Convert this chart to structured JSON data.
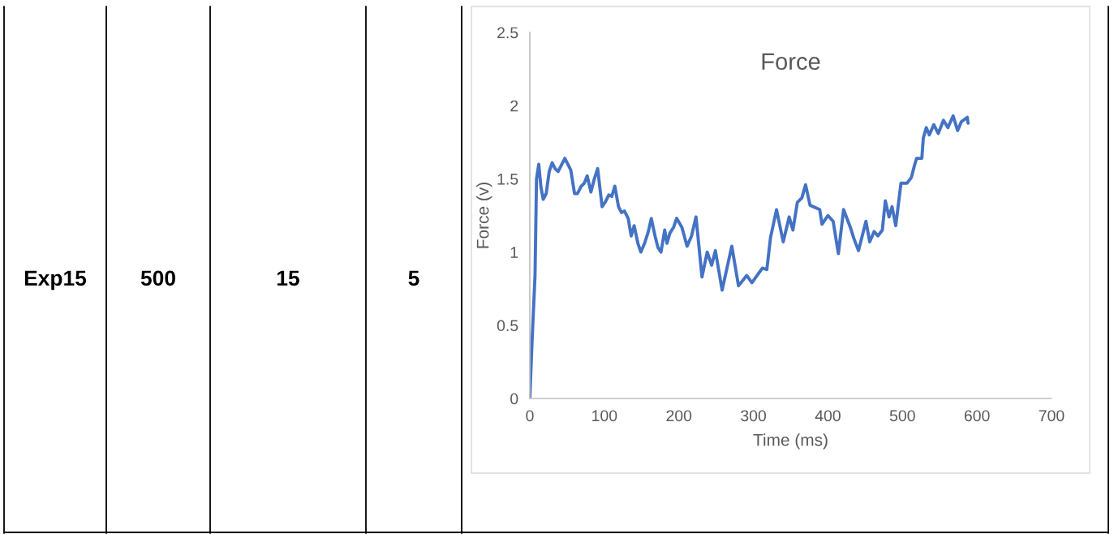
{
  "chart_data": [
    {
      "type": "other",
      "annotations": [
        "Exp15",
        "500",
        "15",
        "5"
      ]
    },
    {
      "type": "line",
      "title": "Force",
      "xlabel": "Time (ms)",
      "ylabel": "Force (v)",
      "xlim": [
        0,
        700
      ],
      "ylim": [
        0,
        2.5
      ],
      "xticks": [
        0,
        100,
        200,
        300,
        400,
        500,
        600,
        700
      ],
      "yticks": [
        0,
        0.5,
        1,
        1.5,
        2,
        2.5
      ],
      "grid": false,
      "legend": false,
      "series": [
        {
          "color": "#4472c4",
          "x": [
            0,
            3,
            7,
            9,
            12,
            15,
            18,
            22,
            26,
            30,
            34,
            38,
            42,
            47,
            51,
            55,
            60,
            64,
            69,
            73,
            77,
            82,
            86,
            91,
            97,
            101,
            106,
            110,
            114,
            119,
            123,
            127,
            132,
            136,
            140,
            145,
            149,
            154,
            159,
            163,
            168,
            172,
            176,
            181,
            184,
            188,
            193,
            197,
            204,
            211,
            217,
            223,
            231,
            238,
            244,
            249,
            258,
            271,
            280,
            291,
            298,
            312,
            318,
            323,
            331,
            340,
            348,
            353,
            359,
            365,
            370,
            376,
            389,
            392,
            400,
            407,
            414,
            421,
            430,
            435,
            441,
            451,
            456,
            462,
            467,
            473,
            477,
            482,
            486,
            491,
            498,
            506,
            512,
            516,
            519,
            526,
            528,
            532,
            536,
            542,
            548,
            555,
            561,
            568,
            574,
            579,
            587,
            588
          ],
          "values": [
            0,
            0.39,
            0.84,
            1.5,
            1.6,
            1.44,
            1.36,
            1.4,
            1.55,
            1.61,
            1.57,
            1.55,
            1.59,
            1.64,
            1.6,
            1.56,
            1.4,
            1.4,
            1.45,
            1.47,
            1.52,
            1.41,
            1.49,
            1.57,
            1.31,
            1.34,
            1.39,
            1.38,
            1.45,
            1.31,
            1.27,
            1.28,
            1.23,
            1.11,
            1.18,
            1.06,
            1.0,
            1.06,
            1.14,
            1.23,
            1.11,
            1.03,
            1.0,
            1.15,
            1.06,
            1.13,
            1.17,
            1.23,
            1.17,
            1.04,
            1.11,
            1.24,
            0.83,
            1.0,
            0.91,
            1.01,
            0.74,
            1.04,
            0.77,
            0.84,
            0.79,
            0.89,
            0.88,
            1.1,
            1.29,
            1.07,
            1.24,
            1.15,
            1.34,
            1.37,
            1.46,
            1.32,
            1.29,
            1.19,
            1.25,
            1.21,
            0.99,
            1.29,
            1.17,
            1.09,
            1.01,
            1.21,
            1.07,
            1.14,
            1.11,
            1.15,
            1.35,
            1.24,
            1.31,
            1.18,
            1.47,
            1.47,
            1.51,
            1.59,
            1.64,
            1.64,
            1.78,
            1.85,
            1.8,
            1.87,
            1.81,
            1.9,
            1.85,
            1.93,
            1.83,
            1.89,
            1.92,
            1.88
          ]
        }
      ]
    }
  ]
}
